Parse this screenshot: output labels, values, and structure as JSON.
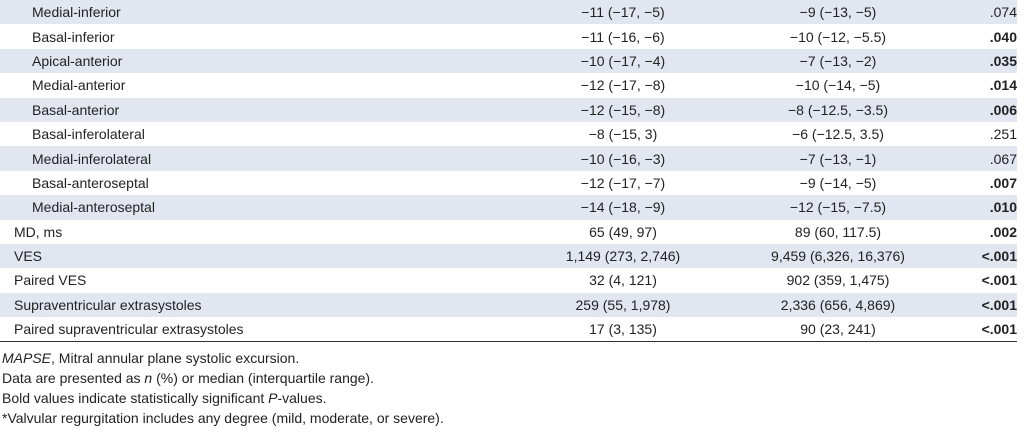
{
  "table": {
    "rows": [
      {
        "label": "Medial-inferior",
        "indent": true,
        "group1": "−11 (−17, −5)",
        "group2": "−9 (−13, −5)",
        "p": ".074",
        "bold": false,
        "shaded": true
      },
      {
        "label": "Basal-inferior",
        "indent": true,
        "group1": "−11 (−16, −6)",
        "group2": "−10 (−12, −5.5)",
        "p": ".040",
        "bold": true,
        "shaded": false
      },
      {
        "label": "Apical-anterior",
        "indent": true,
        "group1": "−10 (−17, −4)",
        "group2": "−7 (−13, −2)",
        "p": ".035",
        "bold": true,
        "shaded": true
      },
      {
        "label": "Medial-anterior",
        "indent": true,
        "group1": "−12 (−17, −8)",
        "group2": "−10 (−14, −5)",
        "p": ".014",
        "bold": true,
        "shaded": false
      },
      {
        "label": "Basal-anterior",
        "indent": true,
        "group1": "−12 (−15, −8)",
        "group2": "−8 (−12.5, −3.5)",
        "p": ".006",
        "bold": true,
        "shaded": true
      },
      {
        "label": "Basal-inferolateral",
        "indent": true,
        "group1": "−8 (−15, 3)",
        "group2": "−6 (−12.5, 3.5)",
        "p": ".251",
        "bold": false,
        "shaded": false
      },
      {
        "label": "Medial-inferolateral",
        "indent": true,
        "group1": "−10 (−16, −3)",
        "group2": "−7 (−13, −1)",
        "p": ".067",
        "bold": false,
        "shaded": true
      },
      {
        "label": "Basal-anteroseptal",
        "indent": true,
        "group1": "−12 (−17, −7)",
        "group2": "−9 (−14, −5)",
        "p": ".007",
        "bold": true,
        "shaded": false
      },
      {
        "label": "Medial-anteroseptal",
        "indent": true,
        "group1": "−14 (−18, −9)",
        "group2": "−12 (−15, −7.5)",
        "p": ".010",
        "bold": true,
        "shaded": true
      },
      {
        "label": "MD, ms",
        "indent": false,
        "group1": "65 (49, 97)",
        "group2": "89 (60, 117.5)",
        "p": ".002",
        "bold": true,
        "shaded": false
      },
      {
        "label": "VES",
        "indent": false,
        "group1": "1,149 (273, 2,746)",
        "group2": "9,459 (6,326, 16,376)",
        "p": "<.001",
        "bold": true,
        "shaded": true
      },
      {
        "label": "Paired VES",
        "indent": false,
        "group1": "32 (4, 121)",
        "group2": "902 (359, 1,475)",
        "p": "<.001",
        "bold": true,
        "shaded": false
      },
      {
        "label": "Supraventricular extrasystoles",
        "indent": false,
        "group1": "259 (55, 1,978)",
        "group2": "2,336 (656, 4,869)",
        "p": "<.001",
        "bold": true,
        "shaded": true
      },
      {
        "label": "Paired supraventricular extrasystoles",
        "indent": false,
        "group1": "17 (3, 135)",
        "group2": "90 (23, 241)",
        "p": "<.001",
        "bold": true,
        "shaded": false
      }
    ]
  },
  "footnotes": {
    "abbrev_term": "MAPSE",
    "abbrev_text": ", Mitral annular plane systolic excursion.",
    "data_pre": "Data are presented as ",
    "data_n": "n",
    "data_post": " (%) or median (interquartile range).",
    "bold_pre": "Bold values indicate statistically significant ",
    "bold_p": "P",
    "bold_post": "-values.",
    "valvular": "*Valvular regurgitation includes any degree (mild, moderate, or severe)."
  },
  "colors": {
    "row_shade": "#e1e6f1",
    "text": "#222222"
  }
}
